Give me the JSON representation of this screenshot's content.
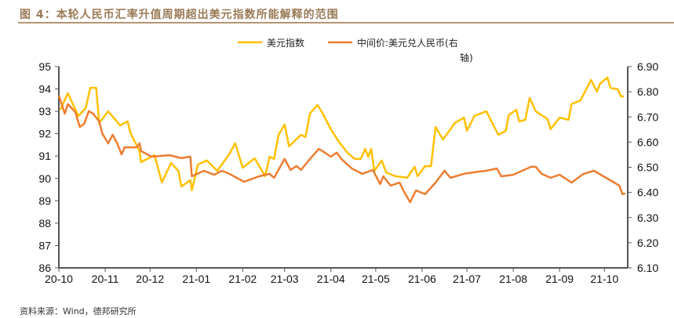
{
  "title": "图 4：本轮人民币汇率升值周期超出美元指数所能解释的范围",
  "footer": "资料来源：Wind，德邦研究所",
  "chart_data": {
    "type": "line",
    "title": "",
    "xlabel": "",
    "ylabel": "",
    "x_range": [
      "2020-10-01",
      "2021-10-15"
    ],
    "x_tick_labels": [
      "20-10",
      "20-11",
      "20-12",
      "21-01",
      "21-02",
      "21-03",
      "21-04",
      "21-05",
      "21-06",
      "21-07",
      "21-08",
      "21-09",
      "21-10"
    ],
    "x_tick_dates": [
      "2020-10-01",
      "2020-11-01",
      "2020-12-01",
      "2021-01-01",
      "2021-02-01",
      "2021-03-01",
      "2021-04-01",
      "2021-05-01",
      "2021-06-01",
      "2021-07-01",
      "2021-08-01",
      "2021-09-01",
      "2021-10-01"
    ],
    "ylim_left": [
      86,
      95
    ],
    "y_ticks_left": [
      "86",
      "87",
      "88",
      "89",
      "90",
      "91",
      "92",
      "93",
      "94",
      "95"
    ],
    "ylim_right": [
      6.1,
      6.9
    ],
    "y_ticks_right": [
      "6.10",
      "6.20",
      "6.30",
      "6.40",
      "6.50",
      "6.60",
      "6.70",
      "6.80",
      "6.90"
    ],
    "grid": false,
    "legend_position": "top-right",
    "series": [
      {
        "name": "美元指数",
        "axis": "left",
        "color": "#FFC000",
        "points": [
          [
            "2020-10-02",
            93.07
          ],
          [
            "2020-10-07",
            93.81
          ],
          [
            "2020-10-14",
            92.79
          ],
          [
            "2020-10-19",
            93.14
          ],
          [
            "2020-10-22",
            94.05
          ],
          [
            "2020-10-26",
            94.05
          ],
          [
            "2020-10-28",
            92.48
          ],
          [
            "2020-11-03",
            93.0
          ],
          [
            "2020-11-11",
            92.37
          ],
          [
            "2020-11-16",
            92.55
          ],
          [
            "2020-11-18",
            92.02
          ],
          [
            "2020-11-24",
            91.22
          ],
          [
            "2020-11-25",
            90.73
          ],
          [
            "2020-12-04",
            91.04
          ],
          [
            "2020-12-09",
            89.82
          ],
          [
            "2020-12-15",
            90.69
          ],
          [
            "2020-12-20",
            90.34
          ],
          [
            "2020-12-22",
            89.64
          ],
          [
            "2020-12-28",
            89.92
          ],
          [
            "2020-12-29",
            89.47
          ],
          [
            "2021-01-02",
            90.62
          ],
          [
            "2021-01-08",
            90.8
          ],
          [
            "2021-01-15",
            90.34
          ],
          [
            "2021-01-23",
            91.08
          ],
          [
            "2021-01-27",
            91.57
          ],
          [
            "2021-02-01",
            90.48
          ],
          [
            "2021-02-09",
            90.9
          ],
          [
            "2021-02-16",
            90.1
          ],
          [
            "2021-02-19",
            90.97
          ],
          [
            "2021-02-22",
            90.87
          ],
          [
            "2021-02-25",
            91.95
          ],
          [
            "2021-03-01",
            92.41
          ],
          [
            "2021-03-04",
            91.43
          ],
          [
            "2021-03-12",
            91.95
          ],
          [
            "2021-03-15",
            91.85
          ],
          [
            "2021-03-18",
            92.9
          ],
          [
            "2021-03-23",
            93.28
          ],
          [
            "2021-03-26",
            92.97
          ],
          [
            "2021-04-01",
            92.2
          ],
          [
            "2021-04-06",
            91.67
          ],
          [
            "2021-04-12",
            91.15
          ],
          [
            "2021-04-17",
            90.87
          ],
          [
            "2021-04-21",
            90.87
          ],
          [
            "2021-04-24",
            91.32
          ],
          [
            "2021-04-26",
            90.97
          ],
          [
            "2021-04-28",
            91.32
          ],
          [
            "2021-04-30",
            90.34
          ],
          [
            "2021-05-05",
            90.8
          ],
          [
            "2021-05-08",
            90.27
          ],
          [
            "2021-05-14",
            90.1
          ],
          [
            "2021-05-22",
            90.03
          ],
          [
            "2021-05-27",
            90.52
          ],
          [
            "2021-05-29",
            90.1
          ],
          [
            "2021-06-03",
            90.55
          ],
          [
            "2021-06-07",
            90.55
          ],
          [
            "2021-06-10",
            92.3
          ],
          [
            "2021-06-15",
            91.74
          ],
          [
            "2021-06-23",
            92.48
          ],
          [
            "2021-06-29",
            92.72
          ],
          [
            "2021-07-01",
            92.13
          ],
          [
            "2021-07-06",
            92.79
          ],
          [
            "2021-07-14",
            93.0
          ],
          [
            "2021-07-22",
            91.95
          ],
          [
            "2021-07-27",
            92.13
          ],
          [
            "2021-07-29",
            92.83
          ],
          [
            "2021-08-03",
            93.07
          ],
          [
            "2021-08-05",
            92.55
          ],
          [
            "2021-08-09",
            92.62
          ],
          [
            "2021-08-12",
            93.6
          ],
          [
            "2021-08-16",
            93.0
          ],
          [
            "2021-08-24",
            92.65
          ],
          [
            "2021-08-26",
            92.2
          ],
          [
            "2021-09-01",
            92.72
          ],
          [
            "2021-09-07",
            92.62
          ],
          [
            "2021-09-09",
            93.32
          ],
          [
            "2021-09-15",
            93.49
          ],
          [
            "2021-09-22",
            94.4
          ],
          [
            "2021-09-26",
            93.88
          ],
          [
            "2021-09-28",
            94.23
          ],
          [
            "2021-10-03",
            94.51
          ],
          [
            "2021-10-05",
            94.05
          ],
          [
            "2021-10-10",
            93.98
          ],
          [
            "2021-10-12",
            93.67
          ],
          [
            "2021-10-14",
            93.67
          ]
        ]
      },
      {
        "name": "中间价:美元兑人民币(右轴)",
        "axis": "right",
        "color": "#ED7D31",
        "points": [
          [
            "2020-10-01",
            6.785
          ],
          [
            "2020-10-05",
            6.713
          ],
          [
            "2020-10-07",
            6.751
          ],
          [
            "2020-10-12",
            6.719
          ],
          [
            "2020-10-15",
            6.66
          ],
          [
            "2020-10-18",
            6.673
          ],
          [
            "2020-10-21",
            6.723
          ],
          [
            "2020-10-24",
            6.713
          ],
          [
            "2020-10-28",
            6.682
          ],
          [
            "2020-10-30",
            6.635
          ],
          [
            "2020-11-03",
            6.595
          ],
          [
            "2020-11-06",
            6.629
          ],
          [
            "2020-11-09",
            6.595
          ],
          [
            "2020-11-12",
            6.551
          ],
          [
            "2020-11-14",
            6.579
          ],
          [
            "2020-11-22",
            6.579
          ],
          [
            "2020-11-24",
            6.595
          ],
          [
            "2020-11-25",
            6.564
          ],
          [
            "2020-12-02",
            6.542
          ],
          [
            "2020-12-14",
            6.548
          ],
          [
            "2020-12-22",
            6.536
          ],
          [
            "2020-12-28",
            6.542
          ],
          [
            "2020-12-29",
            6.464
          ],
          [
            "2021-01-06",
            6.486
          ],
          [
            "2021-01-13",
            6.47
          ],
          [
            "2021-01-18",
            6.486
          ],
          [
            "2021-01-23",
            6.474
          ],
          [
            "2021-02-02",
            6.442
          ],
          [
            "2021-02-12",
            6.464
          ],
          [
            "2021-02-19",
            6.474
          ],
          [
            "2021-02-22",
            6.458
          ],
          [
            "2021-03-01",
            6.533
          ],
          [
            "2021-03-05",
            6.489
          ],
          [
            "2021-03-09",
            6.505
          ],
          [
            "2021-03-12",
            6.489
          ],
          [
            "2021-03-18",
            6.533
          ],
          [
            "2021-03-24",
            6.573
          ],
          [
            "2021-03-28",
            6.558
          ],
          [
            "2021-04-01",
            6.542
          ],
          [
            "2021-04-05",
            6.558
          ],
          [
            "2021-04-08",
            6.533
          ],
          [
            "2021-04-15",
            6.495
          ],
          [
            "2021-04-22",
            6.474
          ],
          [
            "2021-04-29",
            6.489
          ],
          [
            "2021-05-04",
            6.433
          ],
          [
            "2021-05-06",
            6.464
          ],
          [
            "2021-05-11",
            6.427
          ],
          [
            "2021-05-17",
            6.439
          ],
          [
            "2021-05-20",
            6.402
          ],
          [
            "2021-05-24",
            6.361
          ],
          [
            "2021-05-28",
            6.408
          ],
          [
            "2021-06-03",
            6.393
          ],
          [
            "2021-06-10",
            6.439
          ],
          [
            "2021-06-16",
            6.486
          ],
          [
            "2021-06-20",
            6.458
          ],
          [
            "2021-06-29",
            6.474
          ],
          [
            "2021-07-06",
            6.48
          ],
          [
            "2021-07-14",
            6.486
          ],
          [
            "2021-07-21",
            6.495
          ],
          [
            "2021-07-24",
            6.464
          ],
          [
            "2021-08-01",
            6.47
          ],
          [
            "2021-08-13",
            6.502
          ],
          [
            "2021-08-16",
            6.502
          ],
          [
            "2021-08-20",
            6.474
          ],
          [
            "2021-08-26",
            6.458
          ],
          [
            "2021-09-01",
            6.47
          ],
          [
            "2021-09-09",
            6.439
          ],
          [
            "2021-09-17",
            6.474
          ],
          [
            "2021-09-24",
            6.486
          ],
          [
            "2021-10-03",
            6.455
          ],
          [
            "2021-10-11",
            6.427
          ],
          [
            "2021-10-13",
            6.393
          ],
          [
            "2021-10-15",
            6.396
          ]
        ]
      }
    ],
    "legend": {
      "line1": "美元指数",
      "line2a": "中间价:美元兑人民币(右",
      "line2b": "轴)"
    }
  }
}
